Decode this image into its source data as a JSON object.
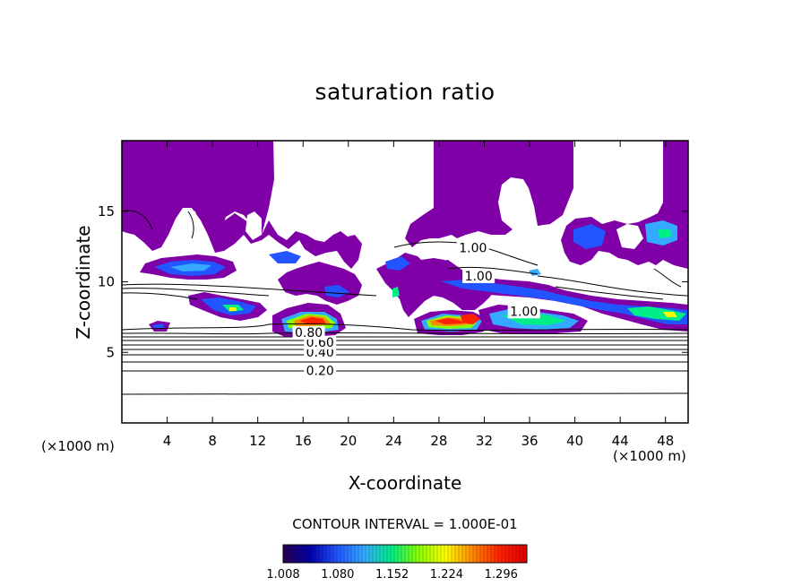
{
  "chart_data": {
    "type": "heatmap",
    "title": "saturation ratio",
    "xlabel": "X-coordinate",
    "ylabel": "Z-coordinate",
    "x_unit": "(×1000 m)",
    "xlim": [
      0,
      50
    ],
    "ylim": [
      0,
      20
    ],
    "x_ticks": [
      4,
      8,
      12,
      16,
      20,
      24,
      28,
      32,
      36,
      40,
      44,
      48
    ],
    "y_ticks": [
      5,
      10,
      15
    ],
    "contour_interval_text": "CONTOUR INTERVAL = 1.000E-01",
    "contour_labels": [
      {
        "text": "0.20",
        "x": 17.5,
        "z": 3.4
      },
      {
        "text": "0.40",
        "x": 17.5,
        "z": 4.7
      },
      {
        "text": "0.60",
        "x": 17.5,
        "z": 5.4
      },
      {
        "text": "0.80",
        "x": 16.5,
        "z": 6.1
      },
      {
        "text": "1.00",
        "x": 31.0,
        "z": 12.1
      },
      {
        "text": "1.00",
        "x": 31.5,
        "z": 10.1
      },
      {
        "text": "1.00",
        "x": 35.5,
        "z": 7.6
      }
    ],
    "colorbar": {
      "ticks": [
        "1.008",
        "1.080",
        "1.152",
        "1.224",
        "1.296"
      ],
      "min": 1.008,
      "max": 1.33
    },
    "colors": {
      "base_fill": "#7f00a6",
      "colorbar_stops": [
        "#2a0050",
        "#0000aa",
        "#2255ff",
        "#33aaff",
        "#00ee88",
        "#88ff00",
        "#ffff00",
        "#ff8800",
        "#ff2200",
        "#dd0000"
      ]
    }
  }
}
